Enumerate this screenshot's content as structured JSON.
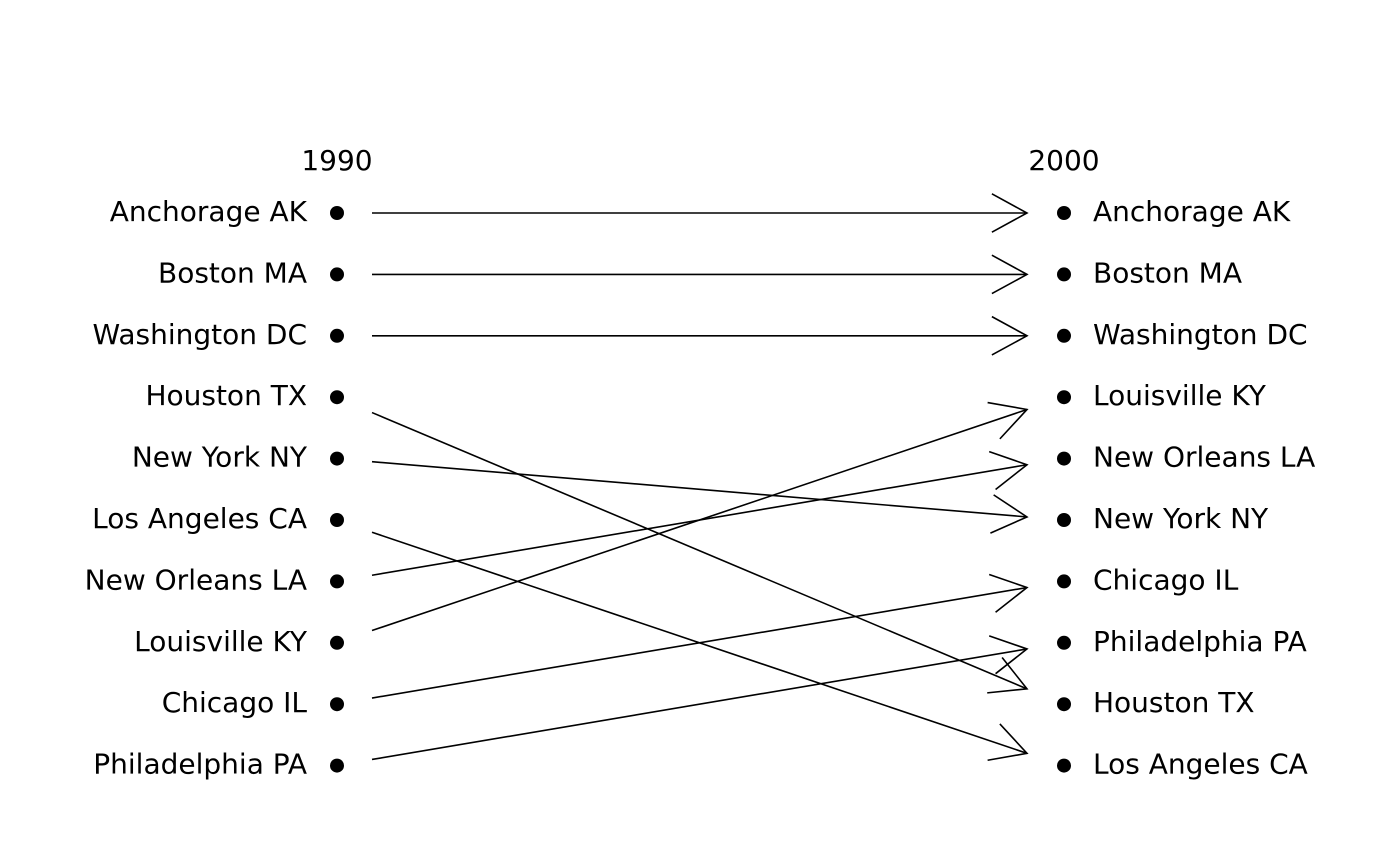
{
  "columns": [
    {
      "heading": "1990",
      "items": [
        "Anchorage AK",
        "Boston MA",
        "Washington DC",
        "Houston TX",
        "New York NY",
        "Los Angeles CA",
        "New Orleans LA",
        "Louisville KY",
        "Chicago IL",
        "Philadelphia PA"
      ]
    },
    {
      "heading": "2000",
      "items": [
        "Anchorage AK",
        "Boston MA",
        "Washington DC",
        "Louisville KY",
        "New Orleans LA",
        "New York NY",
        "Chicago IL",
        "Philadelphia PA",
        "Houston TX",
        "Los Angeles CA"
      ]
    }
  ]
}
